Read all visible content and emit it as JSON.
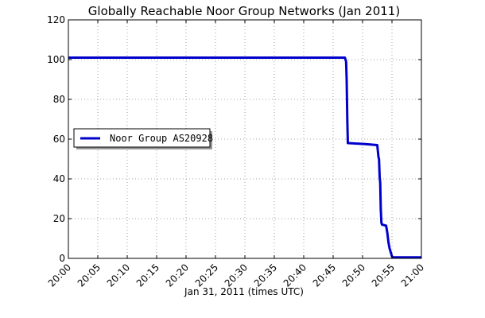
{
  "chart_data": {
    "type": "line",
    "title": "Globally Reachable Noor Group Networks (Jan 2011)",
    "xlabel": "Jan 31, 2011 (times UTC)",
    "ylabel": "",
    "x_unit": "time (HH:MM UTC, Jan 31, 2011)",
    "xlim": [
      "20:00",
      "21:00"
    ],
    "ylim": [
      0,
      120
    ],
    "x_ticks": [
      "20:00",
      "20:05",
      "20:10",
      "20:15",
      "20:20",
      "20:25",
      "20:30",
      "20:35",
      "20:40",
      "20:45",
      "20:50",
      "20:55",
      "21:00"
    ],
    "y_ticks": [
      0,
      20,
      40,
      60,
      80,
      100,
      120
    ],
    "grid": true,
    "legend_position": "center-left",
    "series": [
      {
        "name": "Noor Group AS20928",
        "color": "#0000cc",
        "x": [
          "20:00:00",
          "20:47:00",
          "20:47:12",
          "20:47:18",
          "20:47:24",
          "20:47:30",
          "20:47:36",
          "20:50:30",
          "20:52:30",
          "20:52:42",
          "20:52:48",
          "20:52:54",
          "20:53:00",
          "20:53:06",
          "20:53:12",
          "20:53:18",
          "20:54:00",
          "20:54:12",
          "20:54:24",
          "20:54:36",
          "20:54:48",
          "20:55:00",
          "20:55:06",
          "21:00:00"
        ],
        "y": [
          101,
          101,
          99,
          90,
          70,
          58,
          58,
          57.5,
          57,
          51,
          50,
          41,
          38,
          25,
          18,
          17,
          16.5,
          13,
          8,
          5,
          3,
          1,
          0.5,
          0.5
        ]
      }
    ]
  }
}
